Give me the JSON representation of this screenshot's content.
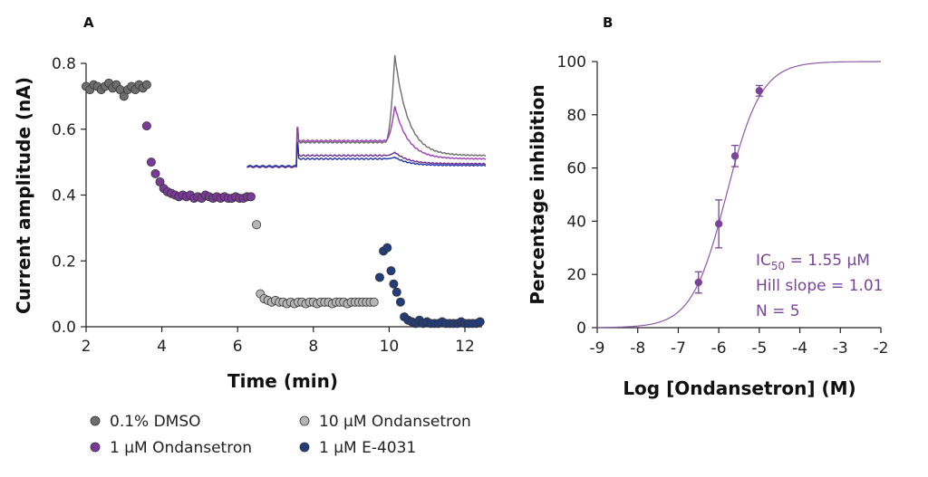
{
  "chart_data": [
    {
      "panel": "A",
      "type": "scatter",
      "xlabel": "Time (min)",
      "ylabel": "Current amplitude (nA)",
      "xlim": [
        2,
        12.5
      ],
      "ylim": [
        0,
        0.8
      ],
      "xticks": [
        "2",
        "4",
        "6",
        "8",
        "10",
        "12"
      ],
      "yticks": [
        "0.0",
        "0.2",
        "0.4",
        "0.6",
        "0.8"
      ],
      "series": [
        {
          "name": "0.1% DMSO",
          "color": "#6d6d6d",
          "x": [
            2.0,
            2.1,
            2.2,
            2.3,
            2.4,
            2.5,
            2.6,
            2.7,
            2.8,
            2.9,
            3.0,
            3.1,
            3.2,
            3.3,
            3.4,
            3.5,
            3.6
          ],
          "y": [
            0.73,
            0.72,
            0.735,
            0.73,
            0.72,
            0.73,
            0.74,
            0.725,
            0.735,
            0.72,
            0.7,
            0.72,
            0.73,
            0.72,
            0.735,
            0.725,
            0.735
          ]
        },
        {
          "name": "1 µM Ondansetron",
          "color": "#7b3a98",
          "x": [
            3.6,
            3.72,
            3.83,
            3.95,
            4.05,
            4.15,
            4.25,
            4.35,
            4.45,
            4.55,
            4.65,
            4.75,
            4.85,
            4.95,
            5.05,
            5.15,
            5.25,
            5.35,
            5.45,
            5.55,
            5.65,
            5.75,
            5.85,
            5.95,
            6.05,
            6.15,
            6.25,
            6.35
          ],
          "y": [
            0.61,
            0.5,
            0.465,
            0.44,
            0.42,
            0.41,
            0.405,
            0.4,
            0.395,
            0.4,
            0.395,
            0.4,
            0.39,
            0.395,
            0.39,
            0.4,
            0.395,
            0.39,
            0.395,
            0.39,
            0.395,
            0.39,
            0.39,
            0.395,
            0.39,
            0.39,
            0.395,
            0.395
          ]
        },
        {
          "name": "10 µM Ondansetron",
          "color": "#b5b5b5",
          "x": [
            6.5,
            6.6,
            6.7,
            6.8,
            6.9,
            7.0,
            7.1,
            7.2,
            7.3,
            7.4,
            7.5,
            7.6,
            7.7,
            7.8,
            7.9,
            8.0,
            8.1,
            8.2,
            8.3,
            8.4,
            8.5,
            8.6,
            8.7,
            8.8,
            8.9,
            9.0,
            9.1,
            9.2,
            9.3,
            9.4,
            9.5,
            9.6
          ],
          "y": [
            0.31,
            0.1,
            0.085,
            0.08,
            0.075,
            0.08,
            0.075,
            0.075,
            0.07,
            0.075,
            0.07,
            0.075,
            0.075,
            0.07,
            0.075,
            0.075,
            0.07,
            0.075,
            0.075,
            0.075,
            0.07,
            0.075,
            0.075,
            0.075,
            0.07,
            0.075,
            0.075,
            0.075,
            0.075,
            0.075,
            0.075,
            0.075
          ]
        },
        {
          "name": "1 µM E-4031",
          "color": "#243d7a",
          "x": [
            9.75,
            9.85,
            9.95,
            10.05,
            10.12,
            10.2,
            10.3,
            10.4,
            10.5,
            10.6,
            10.7,
            10.8,
            10.9,
            11.0,
            11.1,
            11.2,
            11.3,
            11.4,
            11.5,
            11.6,
            11.7,
            11.8,
            11.9,
            12.0,
            12.1,
            12.2,
            12.3,
            12.4
          ],
          "y": [
            0.15,
            0.23,
            0.24,
            0.17,
            0.13,
            0.105,
            0.075,
            0.03,
            0.02,
            0.015,
            0.01,
            0.02,
            0.01,
            0.015,
            0.01,
            0.01,
            0.01,
            0.015,
            0.01,
            0.01,
            0.01,
            0.01,
            0.015,
            0.01,
            0.01,
            0.01,
            0.01,
            0.015
          ]
        }
      ],
      "inset_traces": [
        {
          "name": "0.1% DMSO",
          "color": "#6d6d6d",
          "baseline": 0.56,
          "peak": 0.825,
          "tail": 0.52
        },
        {
          "name": "1 µM Ondansetron",
          "color": "#9b3fb7",
          "baseline": 0.565,
          "peak": 0.67,
          "tail": 0.51
        },
        {
          "name": "10 µM Ondansetron",
          "color": "#6a2c8e",
          "baseline": 0.52,
          "peak": 0.53,
          "tail": 0.495
        },
        {
          "name": "1 µM E-4031",
          "color": "#2232a8",
          "baseline": 0.51,
          "peak": 0.515,
          "tail": 0.49
        }
      ]
    },
    {
      "panel": "B",
      "type": "scatter",
      "xlabel": "Log [Ondansetron] (M)",
      "ylabel": "Percentage inhibition",
      "xlim": [
        -9,
        -2
      ],
      "ylim": [
        0,
        100
      ],
      "xticks": [
        "-9",
        "-8",
        "-7",
        "-6",
        "-5",
        "-4",
        "-3",
        "-2"
      ],
      "yticks": [
        "0",
        "20",
        "40",
        "60",
        "80",
        "100"
      ],
      "points": [
        {
          "x": -6.5,
          "y": 17,
          "err": 4
        },
        {
          "x": -6.0,
          "y": 39,
          "err": 9
        },
        {
          "x": -5.6,
          "y": 64.5,
          "err": 4
        },
        {
          "x": -5.0,
          "y": 89,
          "err": 2
        }
      ],
      "fit": {
        "ic50_log": -5.81,
        "hill": 1.01,
        "top": 100,
        "bottom": 0
      },
      "color": "#7a4596",
      "annotations": {
        "ic50_prefix": "IC",
        "ic50_sub": "50",
        "ic50_value": " = 1.55 µM",
        "hill": "Hill slope = 1.01",
        "n": "N = 5"
      }
    }
  ],
  "legend": [
    {
      "label": "0.1% DMSO",
      "color": "#6d6d6d"
    },
    {
      "label": "10 µM Ondansetron",
      "color": "#b5b5b5"
    },
    {
      "label": "1 µM Ondansetron",
      "color": "#7b3a98"
    },
    {
      "label": "1 µM E-4031",
      "color": "#243d7a"
    }
  ]
}
